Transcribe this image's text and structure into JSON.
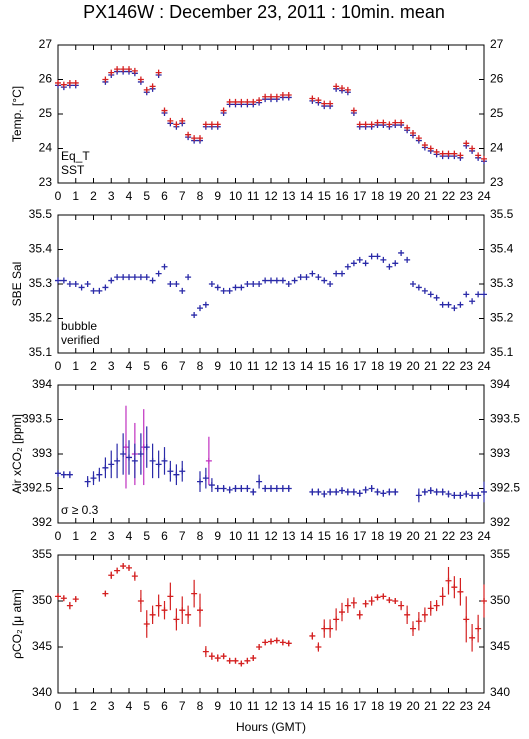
{
  "title": "PX146W : December 23, 2011 : 10min. mean",
  "chart_data": [
    {
      "type": "scatter",
      "ylabel": "Temp. [°C]",
      "xlim": [
        0,
        24
      ],
      "xticks": [
        0,
        1,
        2,
        3,
        4,
        5,
        6,
        7,
        8,
        9,
        10,
        11,
        12,
        13,
        14,
        15,
        16,
        17,
        18,
        19,
        20,
        21,
        22,
        23,
        24
      ],
      "ylim": [
        23,
        27
      ],
      "yticks": [
        23,
        24,
        25,
        26,
        27
      ],
      "series": [
        {
          "name": "SST",
          "color": "#2a2aa8",
          "x": [
            0,
            0.33,
            0.67,
            1.0,
            2.67,
            3.0,
            3.33,
            3.67,
            4.0,
            4.33,
            4.67,
            5.0,
            5.33,
            5.67,
            6.0,
            6.33,
            6.67,
            7.0,
            7.33,
            7.67,
            8.0,
            8.33,
            8.67,
            9.0,
            9.33,
            9.67,
            10.0,
            10.33,
            10.67,
            11.0,
            11.33,
            11.67,
            12.0,
            12.33,
            12.67,
            13.0,
            14.33,
            14.67,
            15.0,
            15.33,
            15.67,
            16.0,
            16.33,
            16.67,
            17.0,
            17.33,
            17.67,
            18.0,
            18.33,
            18.67,
            19.0,
            19.33,
            19.67,
            20.0,
            20.33,
            20.67,
            21.0,
            21.33,
            21.67,
            22.0,
            22.33,
            22.67,
            23.0,
            23.33,
            23.67,
            24.0
          ],
          "values": [
            25.83,
            25.78,
            25.83,
            25.83,
            25.93,
            26.13,
            26.23,
            26.23,
            26.23,
            26.18,
            25.93,
            25.63,
            25.73,
            26.13,
            25.03,
            24.73,
            24.63,
            24.73,
            24.33,
            24.23,
            24.23,
            24.63,
            24.63,
            24.63,
            25.03,
            25.28,
            25.28,
            25.28,
            25.28,
            25.28,
            25.33,
            25.43,
            25.43,
            25.43,
            25.48,
            25.48,
            25.38,
            25.33,
            25.23,
            25.23,
            25.73,
            25.68,
            25.63,
            25.03,
            24.63,
            24.63,
            24.63,
            24.68,
            24.68,
            24.63,
            24.68,
            24.68,
            24.53,
            24.38,
            24.23,
            24.03,
            23.93,
            23.83,
            23.78,
            23.78,
            23.78,
            23.73,
            24.08,
            23.93,
            23.73,
            23.63
          ]
        },
        {
          "name": "Eq_T",
          "color": "#d42020",
          "x": [
            0,
            0.33,
            0.67,
            1.0,
            2.67,
            3.0,
            3.33,
            3.67,
            4.0,
            4.33,
            4.67,
            5.0,
            5.33,
            5.67,
            6.0,
            6.33,
            6.67,
            7.0,
            7.33,
            7.67,
            8.0,
            8.33,
            8.67,
            9.0,
            9.33,
            9.67,
            10.0,
            10.33,
            10.67,
            11.0,
            11.33,
            11.67,
            12.0,
            12.33,
            12.67,
            13.0,
            14.33,
            14.67,
            15.0,
            15.33,
            15.67,
            16.0,
            16.33,
            16.67,
            17.0,
            17.33,
            17.67,
            18.0,
            18.33,
            18.67,
            19.0,
            19.33,
            19.67,
            20.0,
            20.33,
            20.67,
            21.0,
            21.33,
            21.67,
            22.0,
            22.33,
            22.67,
            23.0,
            23.33,
            23.67,
            24.0
          ],
          "values": [
            25.9,
            25.85,
            25.9,
            25.9,
            26.0,
            26.2,
            26.3,
            26.3,
            26.3,
            26.25,
            26.0,
            25.7,
            25.8,
            26.2,
            25.1,
            24.8,
            24.7,
            24.8,
            24.4,
            24.3,
            24.3,
            24.7,
            24.7,
            24.7,
            25.1,
            25.35,
            25.35,
            25.35,
            25.35,
            25.35,
            25.4,
            25.5,
            25.5,
            25.5,
            25.55,
            25.55,
            25.45,
            25.4,
            25.3,
            25.3,
            25.8,
            25.75,
            25.7,
            25.1,
            24.7,
            24.7,
            24.7,
            24.75,
            24.75,
            24.7,
            24.75,
            24.75,
            24.6,
            24.45,
            24.3,
            24.1,
            24.0,
            23.9,
            23.85,
            23.85,
            23.85,
            23.8,
            24.15,
            24.0,
            23.8,
            23.7
          ]
        }
      ]
    },
    {
      "type": "scatter",
      "ylabel": "SBE Sal",
      "xlim": [
        0,
        24
      ],
      "xticks": [
        0,
        1,
        2,
        3,
        4,
        5,
        6,
        7,
        8,
        9,
        10,
        11,
        12,
        13,
        14,
        15,
        16,
        17,
        18,
        19,
        20,
        21,
        22,
        23,
        24
      ],
      "ylim": [
        35.1,
        35.5
      ],
      "yticks": [
        35.1,
        35.2,
        35.3,
        35.4,
        35.5
      ],
      "series": [
        {
          "name": "verified",
          "color": "#2a2aa8",
          "x": [
            0,
            0.33,
            0.67,
            1.0,
            1.33,
            1.67,
            2.0,
            2.33,
            2.67,
            3.0,
            3.33,
            3.67,
            4.0,
            4.33,
            4.67,
            5.0,
            5.33,
            5.67,
            6.0,
            6.33,
            6.67,
            7.0,
            7.33,
            7.67,
            8.0,
            8.33,
            8.67,
            9.0,
            9.33,
            9.67,
            10.0,
            10.33,
            10.67,
            11.0,
            11.33,
            11.67,
            12.0,
            12.33,
            12.67,
            13.0,
            13.33,
            13.67,
            14.0,
            14.33,
            14.67,
            15.0,
            15.33,
            15.67,
            16.0,
            16.33,
            16.67,
            17.0,
            17.33,
            17.67,
            18.0,
            18.33,
            18.67,
            19.0,
            19.33,
            19.67,
            20.0,
            20.33,
            20.67,
            21.0,
            21.33,
            21.67,
            22.0,
            22.33,
            22.67,
            23.0,
            23.33,
            23.67,
            24.0
          ],
          "values": [
            35.31,
            35.31,
            35.3,
            35.3,
            35.29,
            35.3,
            35.28,
            35.28,
            35.29,
            35.31,
            35.32,
            35.32,
            35.32,
            35.32,
            35.32,
            35.32,
            35.31,
            35.33,
            35.35,
            35.3,
            35.3,
            35.28,
            35.32,
            35.21,
            35.23,
            35.24,
            35.3,
            35.29,
            35.28,
            35.28,
            35.29,
            35.29,
            35.3,
            35.3,
            35.3,
            35.31,
            35.31,
            35.31,
            35.31,
            35.3,
            35.31,
            35.32,
            35.32,
            35.33,
            35.32,
            35.31,
            35.3,
            35.33,
            35.33,
            35.35,
            35.36,
            35.37,
            35.36,
            35.38,
            35.38,
            35.37,
            35.35,
            35.36,
            35.39,
            35.37,
            35.3,
            35.29,
            35.28,
            35.27,
            35.26,
            35.24,
            35.24,
            35.23,
            35.24,
            35.27,
            35.25,
            35.27,
            35.27
          ]
        },
        {
          "name": "bubble",
          "color": "#c030c0",
          "x": [],
          "values": []
        }
      ]
    },
    {
      "type": "scatter",
      "ylabel": "Air xCO₂ [ppm]",
      "xlim": [
        0,
        24
      ],
      "xticks": [
        0,
        1,
        2,
        3,
        4,
        5,
        6,
        7,
        8,
        9,
        10,
        11,
        12,
        13,
        14,
        15,
        16,
        17,
        18,
        19,
        20,
        21,
        22,
        23,
        24
      ],
      "ylim": [
        392,
        394
      ],
      "yticks": [
        392,
        392.5,
        393,
        393.5,
        394
      ],
      "series": [
        {
          "name": "σ ≥ 0.3",
          "color": "#c030c0",
          "x": [
            3.83,
            4.33,
            4.83,
            8.5
          ],
          "values": [
            393.1,
            393.0,
            393.1,
            392.9
          ],
          "errors": [
            0.6,
            0.45,
            0.55,
            0.35
          ]
        },
        {
          "name": null,
          "color": "#2a2aa8",
          "x": [
            0,
            0.33,
            0.67,
            1.67,
            2.0,
            2.33,
            2.67,
            3.0,
            3.33,
            3.67,
            4.0,
            4.33,
            4.67,
            5.0,
            5.33,
            5.67,
            6.0,
            6.33,
            6.67,
            7.0,
            8.0,
            8.33,
            8.67,
            9.0,
            9.33,
            9.67,
            10.0,
            10.33,
            10.67,
            11.0,
            11.33,
            11.67,
            12.0,
            12.33,
            12.67,
            13.0,
            14.33,
            14.67,
            15.0,
            15.33,
            15.67,
            16.0,
            16.33,
            16.67,
            17.0,
            17.33,
            17.67,
            18.0,
            18.33,
            18.67,
            19.0,
            20.33,
            20.67,
            21.0,
            21.33,
            21.67,
            22.0,
            22.33,
            22.67,
            23.0,
            23.33,
            23.67,
            24.0
          ],
          "values": [
            392.72,
            392.7,
            392.7,
            392.6,
            392.65,
            392.7,
            392.8,
            392.85,
            392.9,
            393.0,
            392.95,
            392.9,
            393.0,
            393.1,
            392.9,
            392.85,
            392.9,
            392.75,
            392.7,
            392.75,
            392.6,
            392.65,
            392.55,
            392.5,
            392.5,
            392.48,
            392.5,
            392.5,
            392.5,
            392.45,
            392.6,
            392.5,
            392.5,
            392.5,
            392.5,
            392.5,
            392.45,
            392.45,
            392.42,
            392.45,
            392.45,
            392.47,
            392.45,
            392.45,
            392.43,
            392.48,
            392.5,
            392.45,
            392.43,
            392.45,
            392.45,
            392.4,
            392.45,
            392.47,
            392.45,
            392.45,
            392.42,
            392.4,
            392.4,
            392.42,
            392.4,
            392.4,
            392.45
          ],
          "errors": [
            0.05,
            0.05,
            0.05,
            0.08,
            0.1,
            0.1,
            0.15,
            0.2,
            0.25,
            0.3,
            0.25,
            0.25,
            0.3,
            0.3,
            0.25,
            0.2,
            0.2,
            0.15,
            0.15,
            0.15,
            0.15,
            0.15,
            0.1,
            0.05,
            0.05,
            0.05,
            0.05,
            0.05,
            0.05,
            0.05,
            0.1,
            0.05,
            0.05,
            0.05,
            0.05,
            0.05,
            0.05,
            0.05,
            0.05,
            0.05,
            0.05,
            0.05,
            0.05,
            0.05,
            0.05,
            0.05,
            0.05,
            0.05,
            0.05,
            0.05,
            0.05,
            0.1,
            0.05,
            0.05,
            0.05,
            0.05,
            0.05,
            0.05,
            0.05,
            0.05,
            0.05,
            0.05,
            0.15
          ]
        }
      ]
    },
    {
      "type": "scatter",
      "ylabel": "ρCO₂ [μ atm]",
      "xlabel": "Hours (GMT)",
      "xlim": [
        0,
        24
      ],
      "xticks": [
        0,
        1,
        2,
        3,
        4,
        5,
        6,
        7,
        8,
        9,
        10,
        11,
        12,
        13,
        14,
        15,
        16,
        17,
        18,
        19,
        20,
        21,
        22,
        23,
        24
      ],
      "ylim": [
        340,
        355
      ],
      "yticks": [
        340,
        345,
        350,
        355
      ],
      "series": [
        {
          "name": null,
          "color": "#d42020",
          "x": [
            0,
            0.33,
            0.67,
            1.0,
            2.67,
            3.0,
            3.33,
            3.67,
            4.0,
            4.33,
            4.67,
            5.0,
            5.33,
            5.67,
            6.0,
            6.33,
            6.67,
            7.0,
            7.33,
            7.67,
            8.0,
            8.33,
            8.67,
            9.0,
            9.33,
            9.67,
            10.0,
            10.33,
            10.67,
            11.0,
            11.33,
            11.67,
            12.0,
            12.33,
            12.67,
            13.0,
            14.33,
            14.67,
            15.0,
            15.33,
            15.67,
            16.0,
            16.33,
            16.67,
            17.0,
            17.33,
            17.67,
            18.0,
            18.33,
            18.67,
            19.0,
            19.33,
            19.67,
            20.0,
            20.33,
            20.67,
            21.0,
            21.33,
            21.67,
            22.0,
            22.33,
            22.67,
            23.0,
            23.33,
            23.67,
            24.0
          ],
          "values": [
            350.5,
            350.3,
            349.5,
            350.2,
            350.8,
            352.8,
            353.3,
            353.8,
            353.6,
            352.7,
            350,
            347.5,
            348.5,
            349.5,
            349,
            350.5,
            348,
            349,
            348.5,
            350.8,
            349,
            344.5,
            344,
            343.8,
            344,
            343.5,
            343.5,
            343.2,
            343.5,
            343.8,
            345,
            345.5,
            345.6,
            345.7,
            345.5,
            345.4,
            346.2,
            345,
            347,
            347,
            348,
            348.8,
            349.5,
            349.8,
            348.5,
            349.7,
            350,
            350.4,
            350.5,
            350.1,
            350,
            349.5,
            348.5,
            347,
            347.8,
            348.5,
            349.2,
            349.5,
            350.5,
            352.2,
            351.5,
            351,
            348,
            346,
            347,
            350
          ],
          "errors": [
            0.3,
            0.3,
            0.4,
            0.3,
            0.3,
            0.4,
            0.3,
            0.3,
            0.3,
            0.5,
            1.2,
            1.5,
            1.0,
            1.2,
            1.0,
            1.5,
            1.2,
            1.5,
            1.0,
            1.5,
            1.8,
            0.6,
            0.4,
            0.4,
            0.3,
            0.3,
            0.3,
            0.3,
            0.3,
            0.3,
            0.3,
            0.3,
            0.3,
            0.3,
            0.3,
            0.3,
            0.4,
            0.5,
            1.0,
            1.0,
            1.2,
            1.0,
            0.8,
            0.6,
            0.5,
            0.4,
            0.5,
            0.3,
            0.3,
            0.3,
            0.3,
            0.5,
            1.0,
            0.8,
            1.0,
            0.8,
            0.8,
            0.6,
            1.0,
            1.5,
            1.2,
            1.5,
            2.5,
            1.5,
            1.5,
            1.8
          ]
        }
      ]
    }
  ]
}
